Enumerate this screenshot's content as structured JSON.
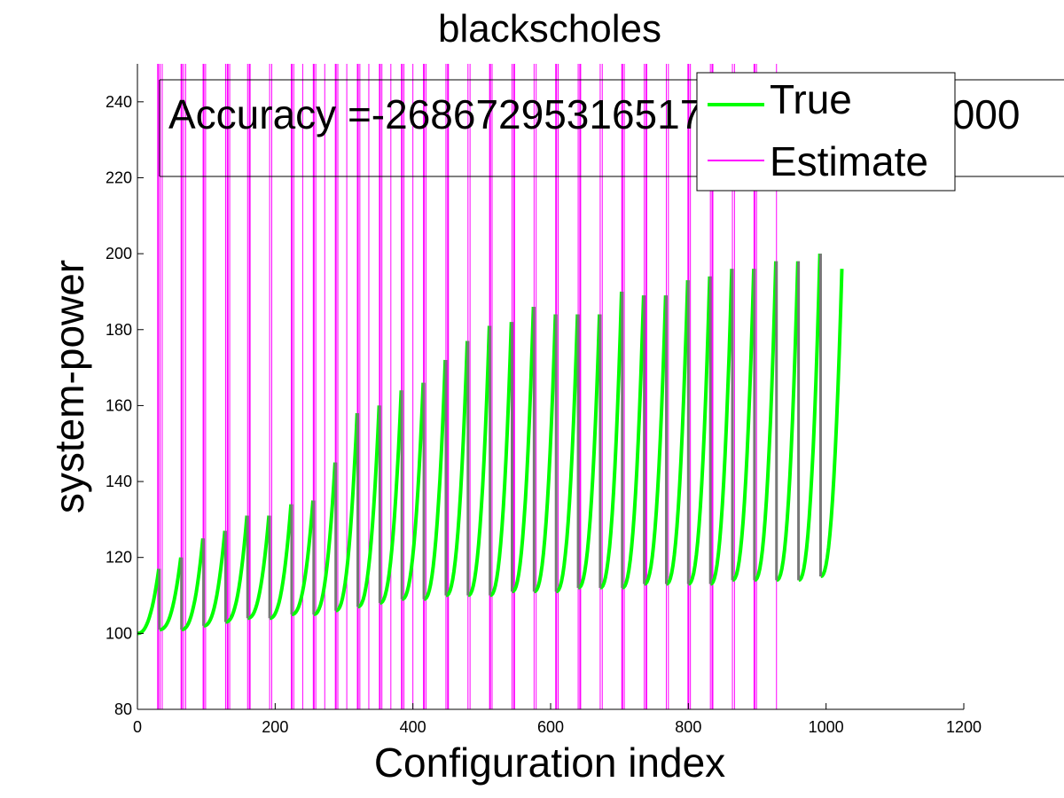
{
  "chart_data": {
    "type": "line",
    "title": "blackscholes",
    "xlabel": "Configuration index",
    "ylabel": "system-power",
    "xlim": [
      0,
      1200
    ],
    "ylim": [
      80,
      250
    ],
    "xticks": [
      0,
      200,
      400,
      600,
      800,
      1000,
      1200
    ],
    "yticks": [
      80,
      100,
      120,
      140,
      160,
      180,
      200,
      220,
      240
    ],
    "annotation": "Accuracy =-2686729531651728500000000000",
    "grid": false,
    "legend_position": "top-right",
    "series": [
      {
        "name": "True",
        "color": "#00ff00",
        "segments": [
          {
            "x0": 0,
            "x1": 32,
            "y0": 100,
            "y1": 117
          },
          {
            "x0": 32,
            "x1": 64,
            "y0": 101,
            "y1": 120
          },
          {
            "x0": 64,
            "x1": 96,
            "y0": 101,
            "y1": 125
          },
          {
            "x0": 96,
            "x1": 128,
            "y0": 102,
            "y1": 127
          },
          {
            "x0": 128,
            "x1": 160,
            "y0": 103,
            "y1": 131
          },
          {
            "x0": 160,
            "x1": 192,
            "y0": 104,
            "y1": 131
          },
          {
            "x0": 192,
            "x1": 224,
            "y0": 104,
            "y1": 134
          },
          {
            "x0": 224,
            "x1": 256,
            "y0": 105,
            "y1": 135
          },
          {
            "x0": 256,
            "x1": 288,
            "y0": 105,
            "y1": 145
          },
          {
            "x0": 288,
            "x1": 320,
            "y0": 106,
            "y1": 158
          },
          {
            "x0": 320,
            "x1": 352,
            "y0": 107,
            "y1": 160
          },
          {
            "x0": 352,
            "x1": 384,
            "y0": 108,
            "y1": 164
          },
          {
            "x0": 384,
            "x1": 416,
            "y0": 109,
            "y1": 166
          },
          {
            "x0": 416,
            "x1": 448,
            "y0": 109,
            "y1": 172
          },
          {
            "x0": 448,
            "x1": 480,
            "y0": 110,
            "y1": 177
          },
          {
            "x0": 480,
            "x1": 512,
            "y0": 110,
            "y1": 181
          },
          {
            "x0": 512,
            "x1": 544,
            "y0": 110,
            "y1": 182
          },
          {
            "x0": 544,
            "x1": 576,
            "y0": 111,
            "y1": 186
          },
          {
            "x0": 576,
            "x1": 608,
            "y0": 111,
            "y1": 184
          },
          {
            "x0": 608,
            "x1": 640,
            "y0": 111,
            "y1": 184
          },
          {
            "x0": 640,
            "x1": 672,
            "y0": 112,
            "y1": 184
          },
          {
            "x0": 672,
            "x1": 704,
            "y0": 112,
            "y1": 190
          },
          {
            "x0": 704,
            "x1": 736,
            "y0": 112,
            "y1": 189
          },
          {
            "x0": 736,
            "x1": 768,
            "y0": 113,
            "y1": 189
          },
          {
            "x0": 768,
            "x1": 800,
            "y0": 113,
            "y1": 193
          },
          {
            "x0": 800,
            "x1": 832,
            "y0": 113,
            "y1": 194
          },
          {
            "x0": 832,
            "x1": 864,
            "y0": 113,
            "y1": 196
          },
          {
            "x0": 864,
            "x1": 896,
            "y0": 114,
            "y1": 196
          },
          {
            "x0": 896,
            "x1": 928,
            "y0": 114,
            "y1": 198
          },
          {
            "x0": 928,
            "x1": 960,
            "y0": 114,
            "y1": 198
          },
          {
            "x0": 960,
            "x1": 992,
            "y0": 114,
            "y1": 200
          },
          {
            "x0": 992,
            "x1": 1024,
            "y0": 115,
            "y1": 196
          }
        ]
      },
      {
        "name": "Estimate",
        "color": "#ff00ff",
        "vertical_lines_x": [
          30,
          33,
          36,
          64,
          67,
          70,
          96,
          99,
          128,
          131,
          134,
          160,
          163,
          192,
          195,
          224,
          227,
          240,
          256,
          259,
          272,
          288,
          291,
          304,
          320,
          323,
          336,
          352,
          355,
          368,
          384,
          387,
          400,
          416,
          419,
          448,
          451,
          480,
          483,
          512,
          515,
          544,
          547,
          576,
          579,
          608,
          611,
          640,
          643,
          672,
          675,
          704,
          707,
          736,
          739,
          768,
          771,
          800,
          803,
          832,
          835,
          864,
          867,
          896,
          899,
          928
        ]
      }
    ]
  }
}
